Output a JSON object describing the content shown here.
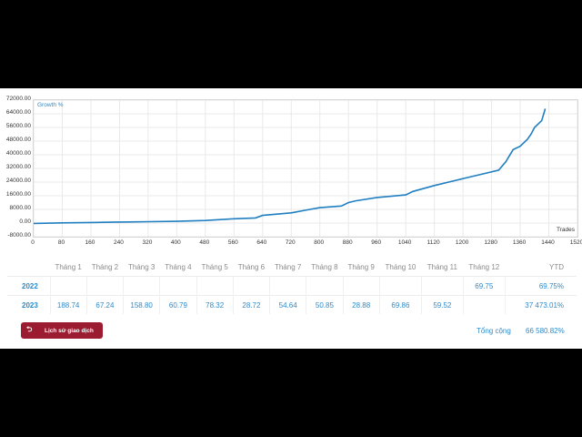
{
  "chart": {
    "series_label": "Growth %",
    "x_axis_label": "Trades",
    "y_ticks": [
      "72000.00",
      "64000.00",
      "56000.00",
      "48000.00",
      "40000.00",
      "32000.00",
      "24000.00",
      "16000.00",
      "8000.00",
      "0.00",
      "-8000.00"
    ],
    "x_ticks": [
      "0",
      "80",
      "160",
      "240",
      "320",
      "400",
      "480",
      "560",
      "640",
      "720",
      "800",
      "880",
      "960",
      "1040",
      "1120",
      "1200",
      "1280",
      "1360",
      "1440",
      "1520"
    ],
    "line_color": "#1f7fc0"
  },
  "chart_data": {
    "type": "line",
    "title": "",
    "xlabel": "Trades",
    "ylabel": "",
    "xlim": [
      0,
      1520
    ],
    "ylim": [
      -8000,
      72000
    ],
    "grid": true,
    "series": [
      {
        "name": "Growth %",
        "x": [
          0,
          80,
          160,
          240,
          320,
          400,
          480,
          560,
          620,
          640,
          720,
          760,
          800,
          860,
          880,
          900,
          960,
          1040,
          1060,
          1120,
          1180,
          1240,
          1300,
          1320,
          1340,
          1360,
          1380,
          1390,
          1400,
          1410,
          1420,
          1430
        ],
        "y": [
          -200,
          100,
          300,
          600,
          800,
          1000,
          1500,
          2500,
          3000,
          4500,
          6000,
          7500,
          9000,
          10000,
          12000,
          13000,
          15000,
          16500,
          18500,
          22000,
          25000,
          28000,
          31000,
          36000,
          43000,
          45000,
          49000,
          52000,
          56000,
          58000,
          60000,
          67000
        ]
      }
    ]
  },
  "table": {
    "headers": [
      "",
      "Tháng 1",
      "Tháng 2",
      "Tháng 3",
      "Tháng 4",
      "Tháng 5",
      "Tháng 6",
      "Tháng 7",
      "Tháng 8",
      "Tháng 9",
      "Tháng 10",
      "Tháng 11",
      "Tháng 12",
      "YTD"
    ],
    "rows": [
      {
        "year": "2022",
        "cells": [
          "",
          "",
          "",
          "",
          "",
          "",
          "",
          "",
          "",
          "",
          "",
          "69.75"
        ],
        "ytd": "69.75%"
      },
      {
        "year": "2023",
        "cells": [
          "188.74",
          "67.24",
          "158.80",
          "60.79",
          "78.32",
          "28.72",
          "54.64",
          "50.85",
          "28.88",
          "69.86",
          "59.52",
          ""
        ],
        "ytd": "37 473.01%"
      }
    ],
    "total_label": "Tổng cộng",
    "total_value": "66 580.82%"
  },
  "button": {
    "label": "Lịch sử giao dịch",
    "icon": "history-icon"
  }
}
